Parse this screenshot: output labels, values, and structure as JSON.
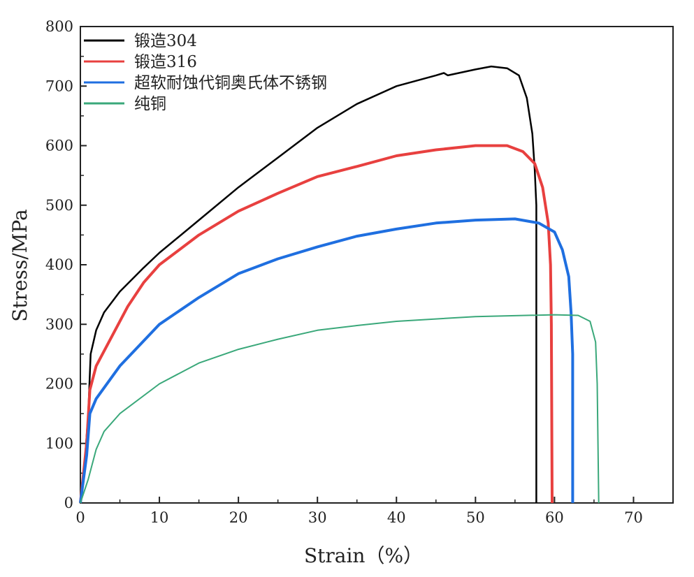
{
  "chart_data": {
    "type": "line",
    "title": "",
    "xlabel": "Strain（%）",
    "ylabel": "Stress/MPa",
    "xlim": [
      0,
      75
    ],
    "ylim": [
      0,
      800
    ],
    "xticks": [
      0,
      10,
      20,
      30,
      40,
      50,
      60,
      70
    ],
    "yticks": [
      0,
      100,
      200,
      300,
      400,
      500,
      600,
      700,
      800
    ],
    "grid": false,
    "legend_position": "top-left",
    "series": [
      {
        "name": "锻造304",
        "color": "#000000",
        "x": [
          0,
          0.5,
          1,
          1.3,
          2,
          3,
          5,
          8,
          10,
          15,
          20,
          25,
          30,
          35,
          40,
          45,
          46,
          46.5,
          50,
          52,
          54,
          55.5,
          56.5,
          57.2,
          57.5,
          57.7,
          57.7
        ],
        "y": [
          0,
          60,
          150,
          250,
          290,
          320,
          355,
          395,
          420,
          475,
          530,
          580,
          630,
          670,
          700,
          718,
          722,
          718,
          728,
          733,
          730,
          718,
          680,
          620,
          560,
          500,
          0
        ]
      },
      {
        "name": "锻造316",
        "color": "#e8403f",
        "x": [
          0,
          0.8,
          1.2,
          2,
          4,
          6,
          8,
          10,
          15,
          20,
          25,
          30,
          35,
          40,
          45,
          50,
          54,
          56,
          57.5,
          58.5,
          59.2,
          59.5,
          59.6,
          59.7
        ],
        "y": [
          0,
          100,
          190,
          230,
          280,
          330,
          370,
          400,
          450,
          490,
          520,
          548,
          565,
          583,
          593,
          600,
          600,
          590,
          570,
          530,
          470,
          400,
          300,
          0
        ]
      },
      {
        "name": "超软耐蚀代铜奥氏体不锈钢",
        "color": "#1f6fe0",
        "x": [
          0,
          0.8,
          1.2,
          2,
          5,
          10,
          15,
          20,
          25,
          30,
          35,
          40,
          45,
          50,
          55,
          58,
          60,
          61,
          61.8,
          62.1,
          62.3,
          62.3
        ],
        "y": [
          0,
          80,
          150,
          175,
          230,
          300,
          345,
          385,
          410,
          430,
          448,
          460,
          470,
          475,
          477,
          470,
          455,
          425,
          380,
          320,
          250,
          0
        ]
      },
      {
        "name": "纯铜",
        "color": "#3aa87a",
        "x": [
          0,
          1,
          2,
          3,
          5,
          10,
          15,
          20,
          25,
          30,
          35,
          40,
          50,
          60,
          63,
          64.5,
          65.2,
          65.4,
          65.6
        ],
        "y": [
          0,
          40,
          90,
          120,
          150,
          200,
          235,
          258,
          275,
          290,
          298,
          305,
          313,
          316,
          315,
          305,
          270,
          200,
          0
        ]
      }
    ]
  }
}
